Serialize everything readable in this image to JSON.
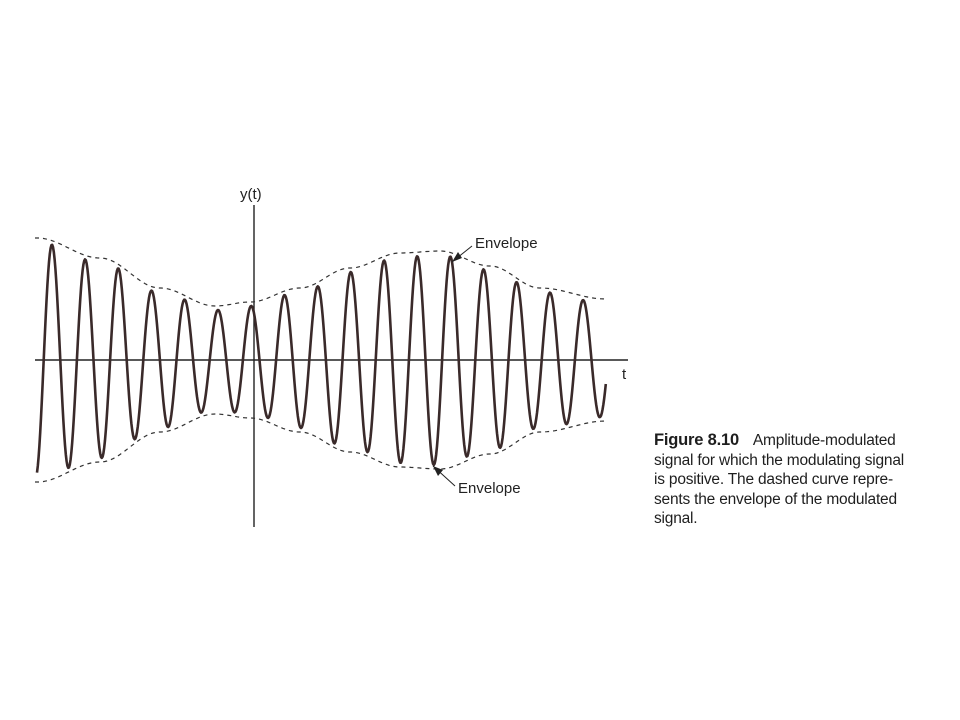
{
  "diagram": {
    "y_axis_label": "y(t)",
    "x_axis_label": "t",
    "envelope_upper_label": "Envelope",
    "envelope_lower_label": "Envelope",
    "colors": {
      "signal": "#3a2a2a",
      "envelope": "#333333",
      "axis": "#222222"
    }
  },
  "caption": {
    "figure_number": "Figure 8.10",
    "line1": "Amplitude-modulated",
    "line2": "signal for which the modulating signal",
    "line3": "is positive. The dashed curve repre-",
    "line4": "sents the envelope of the modulated",
    "line5": "signal."
  }
}
